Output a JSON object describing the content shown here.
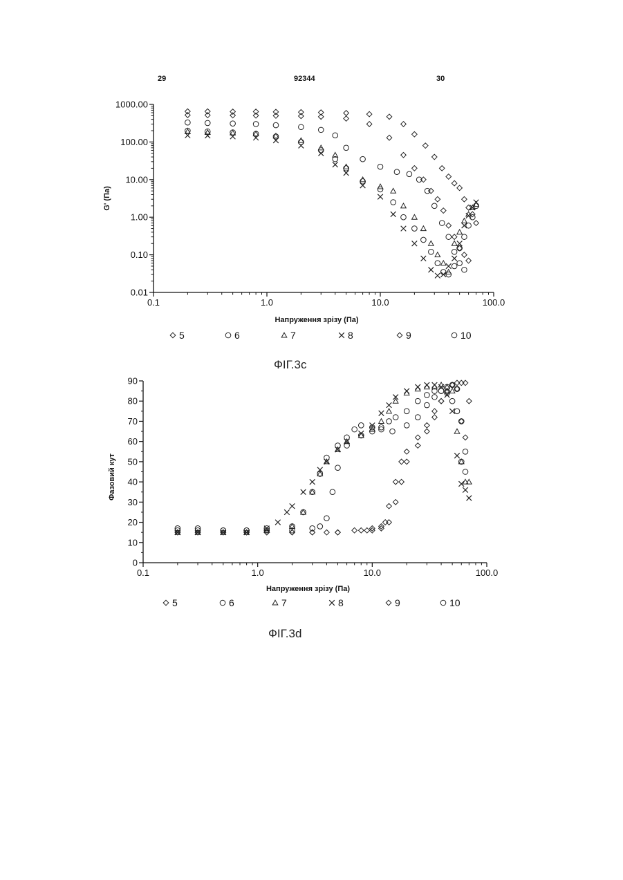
{
  "header": {
    "page_left": "29",
    "doc_number": "92344",
    "page_right": "30"
  },
  "captions": {
    "fig_c": "ФІГ.3с",
    "fig_d": "ФІГ.3d"
  },
  "chart_data": [
    {
      "type": "scatter",
      "title": "",
      "xlabel": "Напруження зрізу (Па)",
      "ylabel": "G' (Па)",
      "x_scale": "log",
      "y_scale": "log",
      "xlim": [
        0.1,
        100.0
      ],
      "ylim": [
        0.01,
        1000.0
      ],
      "x_ticks": [
        "0.1",
        "1.0",
        "10.0",
        "100.0"
      ],
      "y_ticks": [
        "0.01",
        "0.10",
        "1.00",
        "10.00",
        "100.00",
        "1000.00"
      ],
      "legend": [
        "5",
        "6",
        "7",
        "8",
        "9",
        "10"
      ],
      "legend_position": "bottom",
      "series": [
        {
          "name": "5",
          "marker": "diamond",
          "x": [
            0.2,
            0.3,
            0.5,
            0.8,
            1.2,
            2,
            3,
            5,
            8,
            12,
            16,
            20,
            25,
            30,
            35,
            40,
            45,
            50,
            55,
            60,
            65,
            70
          ],
          "y": [
            650,
            650,
            640,
            640,
            630,
            620,
            610,
            590,
            550,
            470,
            300,
            160,
            80,
            40,
            20,
            12,
            8,
            6,
            3,
            1.8,
            1.2,
            0.7
          ]
        },
        {
          "name": "6",
          "marker": "circle",
          "x": [
            0.2,
            0.3,
            0.5,
            0.8,
            1.2,
            2,
            3,
            4,
            5,
            7,
            10,
            14,
            18,
            22,
            26,
            30,
            35,
            40,
            45,
            50,
            55
          ],
          "y": [
            330,
            320,
            310,
            300,
            280,
            250,
            210,
            150,
            70,
            35,
            22,
            16,
            14,
            10,
            5,
            2,
            0.7,
            0.3,
            0.12,
            0.06,
            0.04
          ]
        },
        {
          "name": "7",
          "marker": "triangle",
          "x": [
            0.2,
            0.3,
            0.5,
            0.8,
            1.2,
            2,
            3,
            4,
            5,
            7,
            10,
            13,
            16,
            20,
            24,
            28,
            32,
            36,
            40,
            45,
            50,
            55,
            60,
            65,
            70
          ],
          "y": [
            190,
            180,
            175,
            165,
            145,
            110,
            70,
            45,
            22,
            10,
            6.5,
            5,
            2,
            1,
            0.5,
            0.2,
            0.1,
            0.06,
            0.035,
            0.2,
            0.4,
            0.8,
            1.2,
            1.8,
            2.2
          ]
        },
        {
          "name": "8",
          "marker": "x",
          "x": [
            0.2,
            0.3,
            0.5,
            0.8,
            1.2,
            2,
            3,
            4,
            5,
            7,
            10,
            13,
            16,
            20,
            24,
            28,
            32,
            36,
            40,
            45,
            50,
            55,
            60,
            65,
            70
          ],
          "y": [
            150,
            148,
            140,
            130,
            110,
            80,
            50,
            25,
            15,
            7,
            3.5,
            1.2,
            0.5,
            0.2,
            0.08,
            0.04,
            0.028,
            0.03,
            0.05,
            0.08,
            0.2,
            0.6,
            1.1,
            1.8,
            2.5
          ]
        },
        {
          "name": "9",
          "marker": "diamond",
          "x": [
            0.2,
            0.3,
            0.5,
            0.8,
            1.2,
            2,
            3,
            5,
            8,
            12,
            16,
            20,
            24,
            28,
            32,
            36,
            40,
            45,
            50,
            55,
            60
          ],
          "y": [
            520,
            515,
            510,
            505,
            500,
            490,
            470,
            420,
            300,
            130,
            45,
            20,
            10,
            5,
            3,
            1.5,
            0.6,
            0.3,
            0.15,
            0.1,
            0.07
          ]
        },
        {
          "name": "10",
          "marker": "circle",
          "x": [
            0.2,
            0.3,
            0.5,
            0.8,
            1.2,
            2,
            3,
            4,
            5,
            7,
            10,
            13,
            16,
            20,
            24,
            28,
            32,
            36,
            40,
            45,
            50,
            55,
            60,
            65,
            70
          ],
          "y": [
            200,
            190,
            180,
            165,
            140,
            100,
            60,
            35,
            20,
            9,
            5.5,
            2.5,
            1,
            0.5,
            0.25,
            0.12,
            0.06,
            0.035,
            0.03,
            0.05,
            0.15,
            0.3,
            0.6,
            1.0,
            2.0
          ]
        }
      ]
    },
    {
      "type": "scatter",
      "title": "",
      "xlabel": "Напруження зрізу (Па)",
      "ylabel": "Фазовий кут",
      "x_scale": "log",
      "xlim": [
        0.1,
        100.0
      ],
      "ylim": [
        0,
        90
      ],
      "x_ticks": [
        "0.1",
        "1.0",
        "10.0",
        "100.0"
      ],
      "y_ticks": [
        "0",
        "10",
        "20",
        "30",
        "40",
        "50",
        "60",
        "70",
        "80",
        "90"
      ],
      "legend": [
        "5",
        "6",
        "7",
        "8",
        "9",
        "10"
      ],
      "legend_position": "bottom",
      "series": [
        {
          "name": "5",
          "marker": "diamond",
          "x": [
            0.2,
            0.3,
            0.5,
            0.8,
            1.2,
            2,
            3,
            5,
            8,
            10,
            12,
            14,
            16,
            18,
            20,
            25,
            30,
            35,
            40,
            45,
            50,
            55,
            60,
            65,
            70
          ],
          "y": [
            15,
            15,
            15,
            15,
            15,
            15,
            15,
            15,
            16,
            16,
            17,
            20,
            30,
            40,
            50,
            58,
            65,
            72,
            80,
            85,
            88,
            89,
            89,
            89,
            80
          ]
        },
        {
          "name": "6",
          "marker": "circle",
          "x": [
            0.2,
            0.3,
            0.5,
            0.8,
            1.2,
            2,
            3,
            3.5,
            4,
            4.5,
            5,
            6,
            8,
            10,
            12,
            14,
            16,
            20,
            25,
            30,
            35,
            40,
            45,
            50,
            55,
            60,
            65
          ],
          "y": [
            16,
            16,
            16,
            16,
            16,
            16,
            17,
            18,
            22,
            35,
            47,
            58,
            63,
            65,
            67,
            70,
            72,
            75,
            80,
            83,
            85,
            85,
            84,
            80,
            75,
            50,
            45
          ]
        },
        {
          "name": "7",
          "marker": "triangle",
          "x": [
            0.2,
            0.3,
            0.5,
            0.8,
            1.2,
            2,
            2.5,
            3,
            3.5,
            4,
            5,
            6,
            8,
            10,
            12,
            14,
            16,
            20,
            25,
            30,
            35,
            40,
            45,
            50,
            55,
            60,
            65,
            70
          ],
          "y": [
            15,
            15,
            15,
            15,
            16,
            18,
            25,
            35,
            44,
            50,
            56,
            60,
            63,
            66,
            70,
            75,
            80,
            84,
            86,
            87,
            87,
            88,
            87,
            85,
            65,
            50,
            40,
            40
          ]
        },
        {
          "name": "8",
          "marker": "x",
          "x": [
            0.2,
            0.3,
            0.5,
            0.8,
            1.2,
            1.5,
            1.8,
            2,
            2.5,
            3,
            3.5,
            4,
            5,
            6,
            8,
            10,
            12,
            14,
            16,
            20,
            25,
            30,
            35,
            40,
            45,
            50,
            55,
            60,
            65,
            70
          ],
          "y": [
            15,
            15,
            15,
            15,
            17,
            20,
            25,
            28,
            35,
            40,
            46,
            50,
            56,
            60,
            64,
            68,
            74,
            78,
            82,
            85,
            87,
            88,
            88,
            87,
            83,
            75,
            53,
            39,
            36,
            32
          ]
        },
        {
          "name": "9",
          "marker": "diamond",
          "x": [
            0.2,
            0.3,
            0.5,
            0.8,
            1.2,
            2,
            3,
            4,
            5,
            7,
            9,
            10,
            12,
            13,
            14,
            16,
            18,
            20,
            25,
            30,
            35,
            40,
            45,
            50,
            55,
            60,
            65
          ],
          "y": [
            15,
            15,
            15,
            15,
            15,
            15,
            15,
            15,
            15,
            16,
            16,
            17,
            18,
            20,
            28,
            40,
            50,
            55,
            62,
            68,
            75,
            80,
            85,
            88,
            86,
            70,
            62
          ]
        },
        {
          "name": "10",
          "marker": "circle",
          "x": [
            0.2,
            0.3,
            0.5,
            0.8,
            1.2,
            2,
            2.5,
            3,
            3.5,
            4,
            5,
            6,
            7,
            8,
            10,
            12,
            15,
            20,
            25,
            30,
            35,
            40,
            45,
            50,
            55,
            60,
            65
          ],
          "y": [
            17,
            17,
            16,
            16,
            17,
            18,
            25,
            35,
            44,
            52,
            58,
            62,
            66,
            68,
            67,
            66,
            65,
            68,
            72,
            78,
            82,
            85,
            87,
            88,
            86,
            70,
            55
          ]
        }
      ]
    }
  ]
}
